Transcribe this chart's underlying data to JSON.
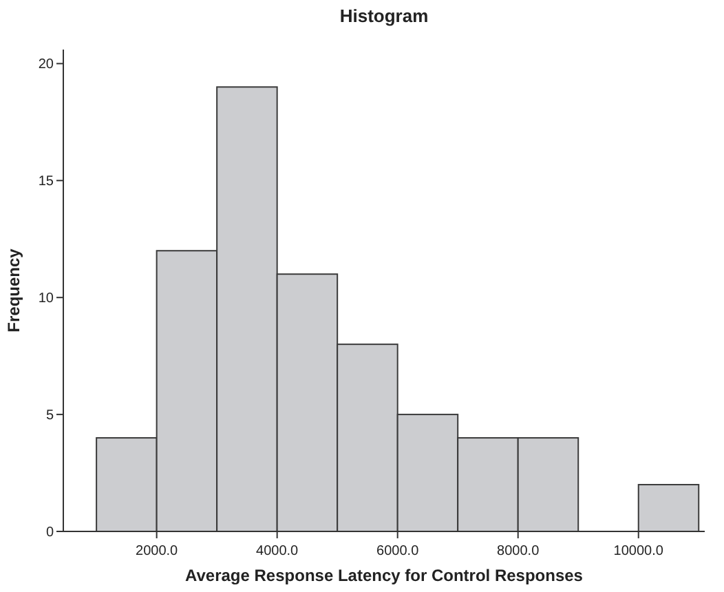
{
  "chart_data": {
    "type": "histogram",
    "title": "Histogram",
    "xlabel": "Average Response Latency for Control Responses",
    "ylabel": "Frequency",
    "bins": [
      1000,
      2000,
      3000,
      4000,
      5000,
      6000,
      7000,
      8000,
      9000,
      10000,
      11000
    ],
    "values": [
      4,
      12,
      19,
      11,
      8,
      5,
      4,
      4,
      0,
      2
    ],
    "color": "#cccdd0",
    "xlim": [
      450,
      11100
    ],
    "xticks": [
      {
        "value": 2000,
        "label": "2000.0"
      },
      {
        "value": 4000,
        "label": "4000.0"
      },
      {
        "value": 6000,
        "label": "6000.0"
      },
      {
        "value": 8000,
        "label": "8000.0"
      },
      {
        "value": 10000,
        "label": "10000.0"
      }
    ],
    "ylim": [
      0,
      20.6
    ],
    "yticks": [
      0,
      5,
      10,
      15,
      20
    ],
    "grid": false
  }
}
